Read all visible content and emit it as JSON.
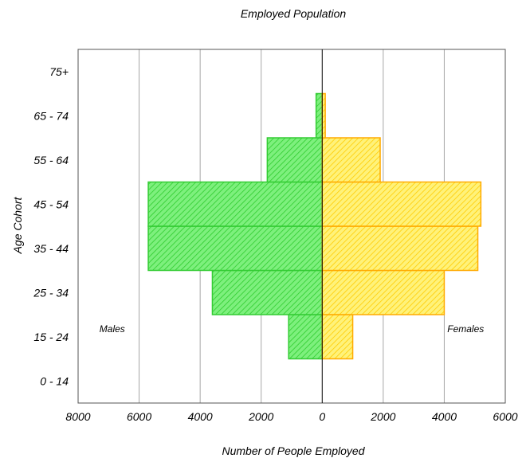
{
  "chart_data": {
    "type": "bar",
    "orientation": "horizontal",
    "title": "Employed Population",
    "xlabel": "Number of People Employed",
    "ylabel": "Age Cohort",
    "categories": [
      "0 - 14",
      "15 - 24",
      "25 - 34",
      "35 - 44",
      "45 - 54",
      "55 - 64",
      "65 - 74",
      "75+"
    ],
    "series": [
      {
        "name": "Males",
        "side": "left",
        "color": "#33cc33",
        "fill": "#66ee66",
        "values": [
          0,
          1100,
          3600,
          5700,
          5700,
          1800,
          200,
          0
        ]
      },
      {
        "name": "Females",
        "side": "right",
        "color": "#ffaa00",
        "fill": "#ffe033",
        "values": [
          0,
          1000,
          4000,
          5100,
          5200,
          1900,
          100,
          0
        ]
      }
    ],
    "xlim": [
      -8000,
      6000
    ],
    "x_ticks": [
      {
        "value": -8000,
        "label": "8000"
      },
      {
        "value": -6000,
        "label": "6000"
      },
      {
        "value": -4000,
        "label": "4000"
      },
      {
        "value": -2000,
        "label": "2000"
      },
      {
        "value": 0,
        "label": "0"
      },
      {
        "value": 2000,
        "label": "2000"
      },
      {
        "value": 4000,
        "label": "4000"
      },
      {
        "value": 6000,
        "label": "6000"
      }
    ],
    "grid": "vertical",
    "annotations": [
      {
        "text": "Males",
        "x": -7300,
        "category": "15 - 24"
      },
      {
        "text": "Females",
        "x": 4100,
        "category": "15 - 24"
      }
    ]
  }
}
